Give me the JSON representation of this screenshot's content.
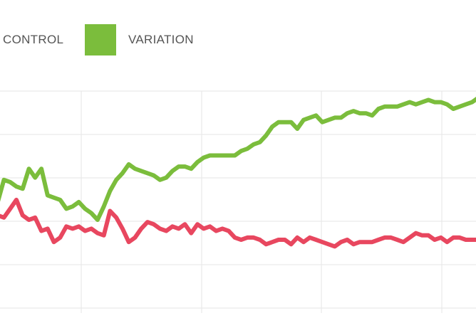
{
  "legend": {
    "control_label": "CONTROL",
    "variation_label": "VARIATION"
  },
  "chart_data": {
    "type": "line",
    "title": "",
    "xlabel": "",
    "ylabel": "",
    "grid": true,
    "legend_position": "top-left",
    "x": [
      0,
      1,
      2,
      3,
      4,
      5,
      6,
      7,
      8,
      9,
      10,
      11,
      12,
      13,
      14,
      15,
      16,
      17,
      18,
      19,
      20,
      21,
      22,
      23,
      24,
      25,
      26,
      27,
      28,
      29,
      30,
      31,
      32,
      33,
      34,
      35,
      36,
      37,
      38,
      39,
      40,
      41,
      42,
      43,
      44,
      45,
      46,
      47,
      48,
      49,
      50,
      51,
      52,
      53,
      54,
      55,
      56,
      57,
      58,
      59,
      60,
      61,
      62,
      63,
      64,
      65,
      66,
      67,
      68,
      69,
      70,
      71,
      72,
      73,
      74,
      75,
      76,
      77,
      78,
      79
    ],
    "xlim": [
      0,
      79
    ],
    "ylim": [
      0,
      100
    ],
    "series": [
      {
        "name": "CONTROL",
        "color": "#e8475f",
        "values": [
          60,
          44,
          43,
          47,
          51,
          44,
          42,
          43,
          37,
          38,
          32,
          34,
          39,
          38,
          39,
          37,
          38,
          36,
          35,
          46,
          43,
          38,
          32,
          34,
          38,
          41,
          40,
          38,
          37,
          39,
          38,
          40,
          36,
          40,
          38,
          39,
          37,
          38,
          37,
          34,
          33,
          34,
          34,
          33,
          31,
          32,
          33,
          33,
          31,
          34,
          32,
          34,
          33,
          32,
          31,
          30,
          32,
          33,
          31,
          32,
          32,
          32,
          33,
          34,
          34,
          33,
          32,
          34,
          36,
          35,
          35,
          33,
          34,
          32,
          34,
          34,
          33,
          33,
          33,
          32
        ],
        "color_swatch": "#e8475f"
      },
      {
        "name": "VARIATION",
        "color": "#7bbd3c",
        "values": [
          55,
          50,
          60,
          59,
          57,
          56,
          65,
          61,
          65,
          53,
          52,
          51,
          47,
          48,
          50,
          47,
          45,
          42,
          48,
          55,
          60,
          63,
          67,
          65,
          64,
          63,
          62,
          60,
          61,
          64,
          66,
          66,
          65,
          68,
          70,
          71,
          71,
          71,
          71,
          71,
          73,
          74,
          76,
          77,
          80,
          84,
          86,
          86,
          86,
          83,
          87,
          88,
          89,
          86,
          87,
          88,
          88,
          90,
          91,
          90,
          90,
          89,
          92,
          93,
          93,
          93,
          94,
          95,
          94,
          95,
          96,
          95,
          95,
          94,
          92,
          93,
          94,
          95,
          97,
          96
        ]
      }
    ]
  }
}
